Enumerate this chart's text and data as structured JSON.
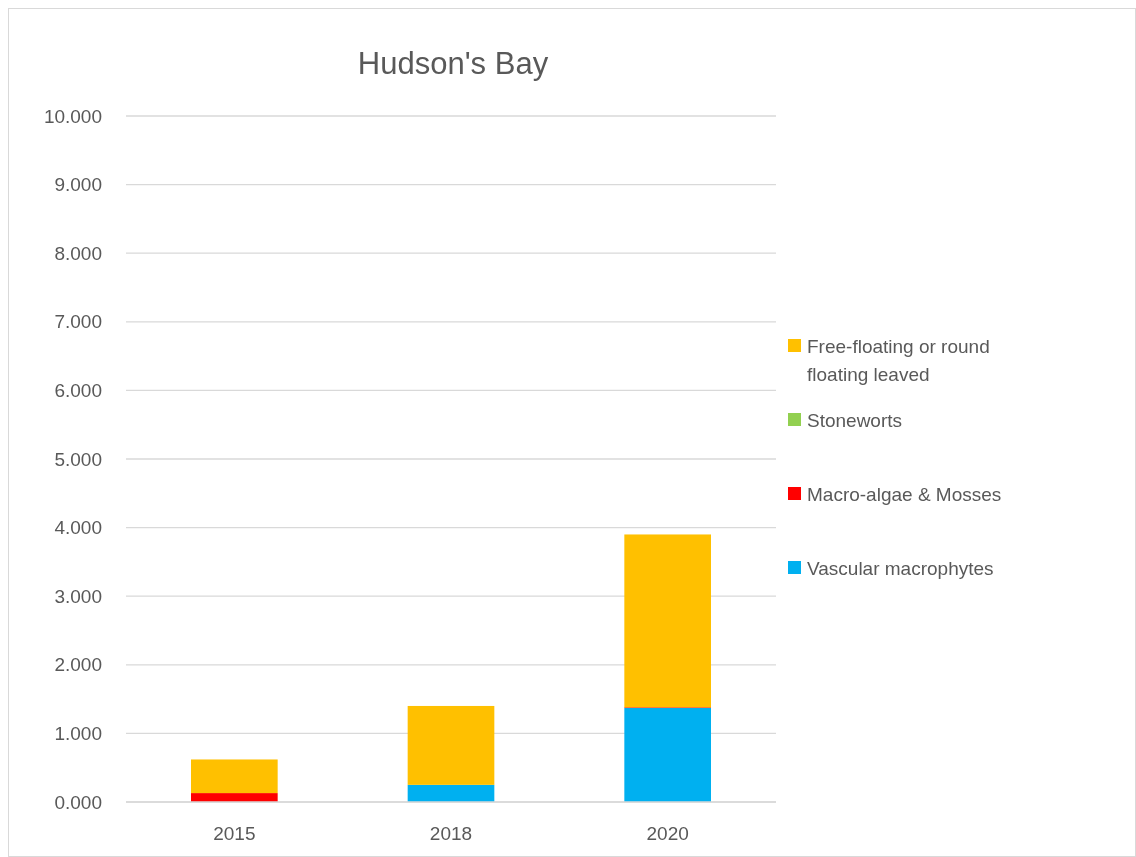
{
  "chart_data": {
    "type": "bar",
    "title": "Hudson's Bay",
    "stacked": true,
    "categories": [
      "2015",
      "2018",
      "2020"
    ],
    "series": [
      {
        "name": "Vascular macrophytes",
        "color": "#00b0f0",
        "values": [
          0,
          0.25,
          1.37
        ]
      },
      {
        "name": "Macro-algae & Mosses",
        "color": "#ff0000",
        "values": [
          0.13,
          0,
          0.01
        ]
      },
      {
        "name": "Stoneworts",
        "color": "#92d050",
        "values": [
          0,
          0,
          0
        ]
      },
      {
        "name": "Free-floating or round floating leaved",
        "color": "#ffc000",
        "values": [
          0.49,
          1.15,
          2.52
        ]
      }
    ],
    "ylim": [
      0,
      10
    ],
    "yticks": [
      {
        "value": 0,
        "label": "0.000"
      },
      {
        "value": 1,
        "label": "1.000"
      },
      {
        "value": 2,
        "label": "2.000"
      },
      {
        "value": 3,
        "label": "3.000"
      },
      {
        "value": 4,
        "label": "4.000"
      },
      {
        "value": 5,
        "label": "5.000"
      },
      {
        "value": 6,
        "label": "6.000"
      },
      {
        "value": 7,
        "label": "7.000"
      },
      {
        "value": 8,
        "label": "8.000"
      },
      {
        "value": 9,
        "label": "9.000"
      },
      {
        "value": 10,
        "label": "10.000"
      }
    ],
    "grid": "y",
    "legend": "right"
  }
}
